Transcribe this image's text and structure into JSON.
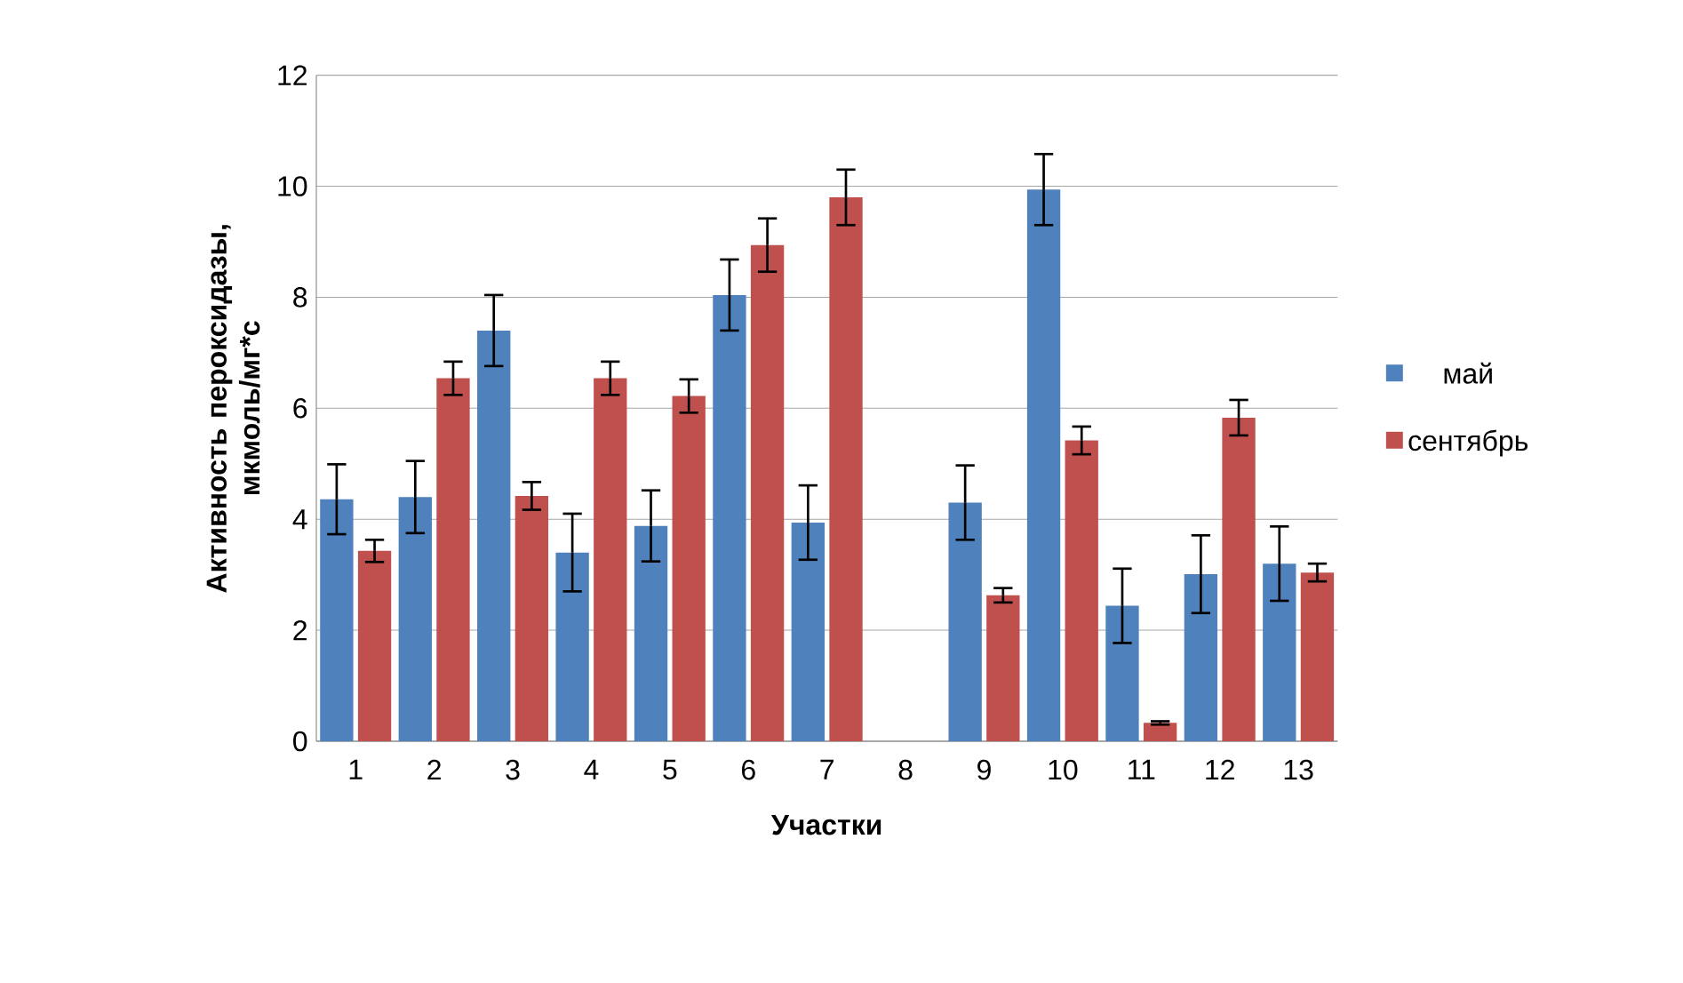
{
  "chart_data": {
    "type": "bar",
    "xlabel": "Участки",
    "ylabel": "Активность пероксидазы, мкмоль/мг*с",
    "categories": [
      "1",
      "2",
      "3",
      "4",
      "5",
      "6",
      "7",
      "8",
      "9",
      "10",
      "11",
      "12",
      "13"
    ],
    "series": [
      {
        "name": "май",
        "color": "#4f81bd",
        "values": [
          4.36,
          4.4,
          7.4,
          3.4,
          3.88,
          8.04,
          3.94,
          null,
          4.3,
          9.94,
          2.44,
          3.01,
          3.2
        ],
        "errors": [
          0.63,
          0.65,
          0.64,
          0.7,
          0.64,
          0.64,
          0.67,
          null,
          0.67,
          0.64,
          0.67,
          0.7,
          0.67
        ]
      },
      {
        "name": "сентябрь",
        "color": "#c0504d",
        "values": [
          3.43,
          6.54,
          4.42,
          6.54,
          6.22,
          8.94,
          9.8,
          null,
          2.63,
          5.42,
          0.33,
          5.83,
          3.04
        ],
        "errors": [
          0.2,
          0.3,
          0.25,
          0.3,
          0.3,
          0.48,
          0.5,
          null,
          0.13,
          0.25,
          0.03,
          0.32,
          0.16
        ]
      }
    ],
    "ylim": [
      0,
      12
    ],
    "yticks": [
      0,
      2,
      4,
      6,
      8,
      10,
      12
    ],
    "grid": "y",
    "legend": "right"
  }
}
